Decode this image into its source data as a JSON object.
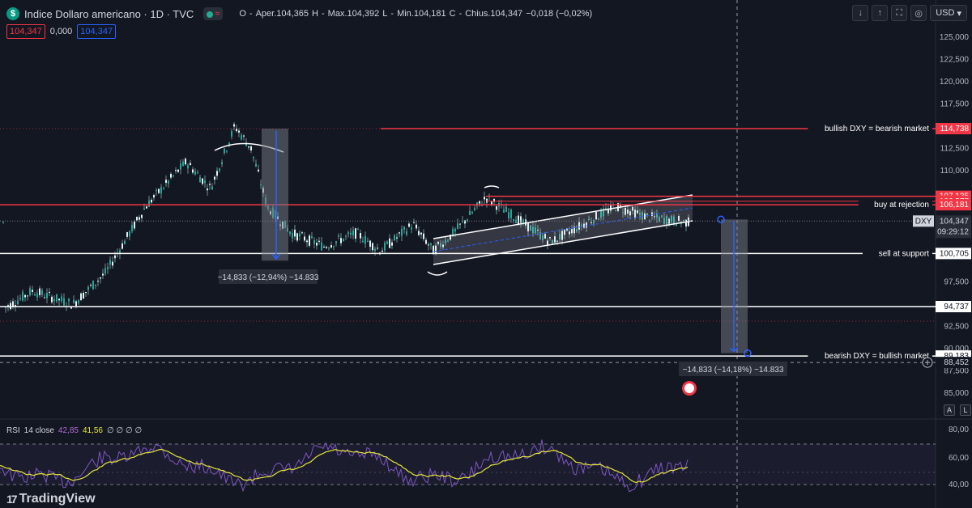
{
  "header": {
    "symbol_badge": "$",
    "title": "Indice Dollaro americano · 1D · TVC",
    "ohlc": [
      {
        "k": "O",
        "v": "Aper.104,365"
      },
      {
        "k": "H",
        "v": "Max.104,392"
      },
      {
        "k": "L",
        "v": "Min.104,181"
      },
      {
        "k": "C",
        "v": "Chius.104,347"
      },
      {
        "k": "",
        "v": "−0,018 (−0,02%)"
      }
    ],
    "sell_price": "104,347",
    "spread": "0,000",
    "buy_price": "104,347"
  },
  "toolbar": {
    "currency": "USD",
    "icons": [
      "arrow-down-icon",
      "upload-icon",
      "fullscreen-icon",
      "screenshot-icon"
    ]
  },
  "price_axis": {
    "ticks": [
      "125,000",
      "122,500",
      "120,000",
      "117,500",
      "112,500",
      "110,000",
      "97,500",
      "92,500",
      "90,000",
      "87,500",
      "85,000"
    ],
    "symbol_label": "DXY",
    "current_price": "104,347",
    "countdown": "09:29:12",
    "ctrl_auto": "A",
    "ctrl_log": "L"
  },
  "levels": [
    {
      "price": 114.738,
      "label": "bullish DXY = bearish market",
      "tag": "114,738",
      "color": "#f23645"
    },
    {
      "price": 107.135,
      "label": "",
      "tag": "107,135",
      "color": "#f23645"
    },
    {
      "price": 106.577,
      "label": "",
      "tag": "106,577",
      "color": "#f23645"
    },
    {
      "price": 106.181,
      "label": "buy at rejection",
      "tag": "106,181",
      "color": "#f23645"
    },
    {
      "price": 100.705,
      "label": "sell at support",
      "tag": "100,705",
      "color": "#ffffff"
    },
    {
      "price": 94.737,
      "label": "",
      "tag": "94,737",
      "color": "#ffffff"
    },
    {
      "price": 89.183,
      "label": "bearish DXY = bullish market",
      "tag": "89,183",
      "color": "#ffffff"
    },
    {
      "price": 88.452,
      "label": "",
      "tag": "88,452",
      "color": "#ffffff"
    }
  ],
  "measures": [
    {
      "text": "−14,833 (−12,94%) −14.833"
    },
    {
      "text": "−14,833 (−14,18%) −14.833"
    }
  ],
  "rsi": {
    "name": "RSI",
    "params": "14 close",
    "value1": "42,85",
    "value2": "41,56",
    "extra": "∅ ∅ ∅ ∅",
    "axis_ticks": [
      "80,00",
      "60,00",
      "40,00"
    ]
  },
  "branding": {
    "logo_mark": "17",
    "name": "TradingView"
  }
}
